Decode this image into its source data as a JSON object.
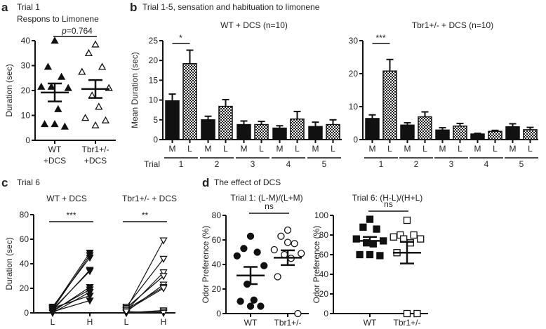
{
  "panel_labels": {
    "a": "a",
    "b": "b",
    "c": "c",
    "d": "d"
  },
  "chart_data": [
    {
      "id": "a",
      "type": "scatter",
      "title_line1": "Trial 1",
      "title_line2": "Respons to Limonene",
      "ylabel": "Duration (sec)",
      "ylim": [
        0,
        40
      ],
      "yticks": [
        0,
        10,
        20,
        30,
        40
      ],
      "categories": [
        [
          "WT",
          "+DCS"
        ],
        [
          "Tbr1+/-",
          "+DCS"
        ]
      ],
      "significance": {
        "p_prefix": "p",
        "p_value": "=0.764"
      },
      "series": [
        {
          "name": "WT",
          "marker": "filled-triangle",
          "values": [
            40,
            29.5,
            25.5,
            21.5,
            21,
            21.5,
            12.5,
            6.5,
            5.5,
            6.5
          ],
          "mean": 19.2,
          "sem": 3.6
        },
        {
          "name": "Tbr1+/-",
          "marker": "open-triangle",
          "values": [
            38.5,
            35,
            29.5,
            27.5,
            21,
            18,
            13.5,
            9,
            8,
            6
          ],
          "mean": 20.6,
          "sem": 3.6
        }
      ]
    },
    {
      "id": "b-title",
      "type": "bar",
      "title": "Trial 1-5, sensation and habituation to limonene"
    },
    {
      "id": "b-wt",
      "type": "bar",
      "title": "WT + DCS (n=10)",
      "ylabel": "Mean Duration (sec)",
      "ylim": [
        0,
        25
      ],
      "yticks": [
        0,
        5,
        10,
        15,
        20,
        25
      ],
      "xlabel": "Trial",
      "trials": [
        "1",
        "2",
        "3",
        "4",
        "5"
      ],
      "bar_labels": [
        "M",
        "L"
      ],
      "series": [
        {
          "name": "M",
          "values": [
            9.8,
            5.0,
            3.8,
            2.9,
            3.3
          ],
          "sem": [
            1.7,
            0.9,
            0.9,
            0.6,
            1.1
          ]
        },
        {
          "name": "L",
          "values": [
            19.2,
            8.4,
            3.8,
            5.2,
            3.8
          ],
          "sem": [
            3.4,
            1.7,
            0.8,
            1.9,
            1.2
          ]
        }
      ],
      "significance": {
        "trial": 0,
        "label": "*"
      }
    },
    {
      "id": "b-tbr1",
      "type": "bar",
      "title": "Tbr1+/- + DCS (n=10)",
      "ylim": [
        0,
        30
      ],
      "yticks": [
        0,
        10,
        20,
        30
      ],
      "trials": [
        "1",
        "2",
        "3",
        "4",
        "5"
      ],
      "bar_labels": [
        "M",
        "L"
      ],
      "series": [
        {
          "name": "M",
          "values": [
            6.4,
            4.4,
            2.9,
            1.7,
            3.9
          ],
          "sem": [
            1.1,
            0.7,
            0.7,
            0.2,
            0.9
          ]
        },
        {
          "name": "L",
          "values": [
            20.8,
            6.9,
            4.1,
            2.5,
            3.0
          ],
          "sem": [
            3.5,
            1.5,
            0.8,
            0.3,
            0.7
          ]
        }
      ],
      "significance": {
        "trial": 0,
        "label": "***"
      }
    },
    {
      "id": "c",
      "type": "line",
      "title": "Trial 6",
      "ylabel": "Duration (sec)",
      "ylim": [
        0,
        80
      ],
      "yticks": [
        0,
        20,
        40,
        60,
        80
      ],
      "groups": [
        {
          "name": "WT + DCS",
          "marker": "filled-down-triangle",
          "significance": "***",
          "L": [
            4,
            3,
            5,
            2,
            3,
            1,
            2,
            0,
            4,
            1
          ],
          "H": [
            49,
            47,
            45,
            35,
            34,
            21,
            19,
            17,
            14,
            10
          ]
        },
        {
          "name": "Tbr1+/- + DCS",
          "marker": "open-down-triangle",
          "significance": "**",
          "L": [
            3,
            5,
            2,
            4,
            1,
            3,
            2,
            0,
            0,
            1
          ],
          "H": [
            59,
            44,
            33,
            30,
            23,
            21,
            20,
            2,
            1,
            0
          ]
        }
      ],
      "x_labels": [
        "L",
        "H"
      ]
    },
    {
      "id": "d-title",
      "type": "scatter",
      "title": "The effect of DCS"
    },
    {
      "id": "d-trial1",
      "type": "scatter",
      "title": "Trial 1: (L-M)/(L+M)",
      "ylabel": "Odor Preference (%)",
      "ylim": [
        0,
        80
      ],
      "yticks": [
        0,
        20,
        40,
        60,
        80
      ],
      "categories": [
        "WT",
        "Tbr1+/-"
      ],
      "significance": "ns",
      "series": [
        {
          "name": "WT",
          "marker": "filled-circle",
          "values": [
            63,
            53,
            50,
            47,
            39,
            24,
            11,
            10,
            6,
            6
          ],
          "mean": 31,
          "sem": 7
        },
        {
          "name": "Tbr1+/-",
          "marker": "open-circle",
          "values": [
            68,
            63,
            57,
            52,
            49,
            48,
            45,
            30,
            0,
            58
          ],
          "mean": 45.5,
          "sem": 6
        }
      ]
    },
    {
      "id": "d-trial6",
      "type": "scatter",
      "title": "Trial 6: (H-L)/(H+L)",
      "ylabel": "Odor Preference (%)",
      "ylim": [
        0,
        100
      ],
      "yticks": [
        0,
        20,
        40,
        60,
        80,
        100
      ],
      "categories": [
        "WT",
        "Tbr1+/-"
      ],
      "significance": "ns",
      "series": [
        {
          "name": "WT",
          "marker": "filled-square",
          "values": [
            96,
            88,
            86,
            76,
            74,
            72,
            71,
            60,
            59,
            60
          ],
          "mean": 74,
          "sem": 4
        },
        {
          "name": "Tbr1+/-",
          "marker": "open-square",
          "values": [
            95,
            80,
            80,
            78,
            76,
            76,
            72,
            62,
            0,
            0
          ],
          "mean": 62,
          "sem": 11
        }
      ]
    }
  ]
}
